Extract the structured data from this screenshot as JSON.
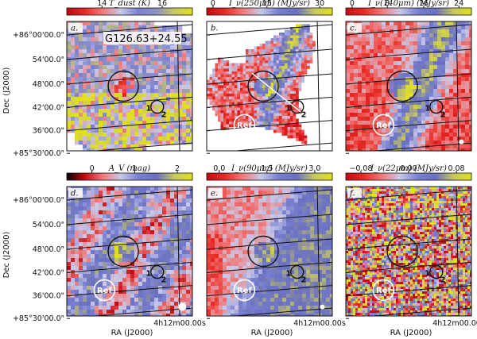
{
  "chart_data": {
    "type": "heatmap",
    "object_name": "G126.63+24.55",
    "ref_label": "Ref",
    "source_labels": [
      "1",
      "2"
    ],
    "ra_tick_label": "4h12m00.00s",
    "dec_ticks": [
      "+86°00'00.0\"",
      "54'00.0\"",
      "48'00.0\"",
      "42'00.0\"",
      "36'00.0\"",
      "+85°30'00.0\""
    ],
    "xlabel": "RA (J2000)",
    "ylabel": "Dec (J2000)",
    "panels": [
      {
        "letter": "a.",
        "colorbar_title": "T_dust (K)",
        "colorbar_ticks": [
          "14",
          "16"
        ],
        "colorbar_tick_pos": [
          0.28,
          0.76
        ],
        "colormap": [
          "#b80a12",
          "#e82a25",
          "#f07a7a",
          "#c9c9e8",
          "#7a80d0",
          "#8f92c4",
          "#c8c860",
          "#e0e020"
        ],
        "style": "tdust",
        "show_object_name": true
      },
      {
        "letter": "b.",
        "colorbar_title": "I_ν(250μm) (MJy/sr)",
        "colorbar_ticks": [
          "0",
          "15",
          "30"
        ],
        "colorbar_tick_pos": [
          0.05,
          0.48,
          0.9
        ],
        "colormap": [
          "#c40a14",
          "#e82a25",
          "#f07a7a",
          "#c9c9e8",
          "#7a80d0",
          "#6a70c0",
          "#c8c860",
          "#e0e020"
        ],
        "style": "i250",
        "show_object_name": false
      },
      {
        "letter": "c.",
        "colorbar_title": "I_ν(140μm) (MJy/sr)",
        "colorbar_ticks": [
          "0",
          "8",
          "16",
          "24"
        ],
        "colorbar_tick_pos": [
          0.05,
          0.33,
          0.62,
          0.9
        ],
        "colormap": [
          "#c40a14",
          "#e82a25",
          "#f07a7a",
          "#c9c9e8",
          "#7a80d0",
          "#6a70c0",
          "#c8c860",
          "#e0e020"
        ],
        "style": "i140",
        "show_object_name": false
      },
      {
        "letter": "d.",
        "colorbar_title": "A_V (mag)",
        "colorbar_ticks": [
          "0",
          "1",
          "2"
        ],
        "colorbar_tick_pos": [
          0.2,
          0.54,
          0.88
        ],
        "colormap": [
          "#000000",
          "#c40a14",
          "#f07a7a",
          "#c9c9e8",
          "#7a80d0",
          "#6a70c0",
          "#c8c860",
          "#e0e020"
        ],
        "style": "av",
        "show_object_name": false
      },
      {
        "letter": "e.",
        "colorbar_title": "I_ν(90μm) (MJy/sr)",
        "colorbar_ticks": [
          "0.0",
          "1.5",
          "3.0"
        ],
        "colorbar_tick_pos": [
          0.1,
          0.48,
          0.86
        ],
        "colormap": [
          "#c40a14",
          "#e82a25",
          "#f07a7a",
          "#c9c9e8",
          "#7a80d0",
          "#6a70c0",
          "#c8c860",
          "#e0e020"
        ],
        "style": "i90",
        "show_object_name": false
      },
      {
        "letter": "f.",
        "colorbar_title": "I_ν(22μm) (MJy/sr)",
        "colorbar_ticks": [
          "−0.08",
          "0.00",
          "0.08"
        ],
        "colorbar_tick_pos": [
          0.12,
          0.5,
          0.88
        ],
        "colormap": [
          "#c40a14",
          "#e82a25",
          "#f07a7a",
          "#c9c9e8",
          "#7a80d0",
          "#6a70c0",
          "#c8c860",
          "#e0e020"
        ],
        "style": "i22",
        "show_object_name": false
      }
    ]
  }
}
